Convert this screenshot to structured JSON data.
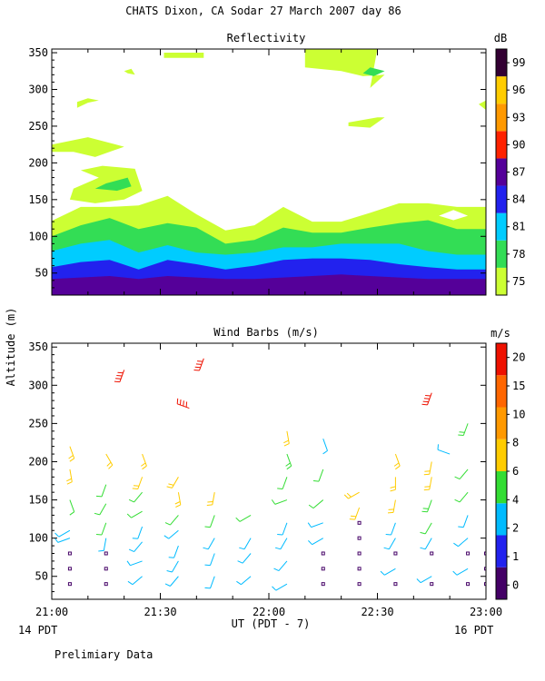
{
  "header": {
    "title": "CHATS Dixon, CA   Sodar  27 March 2007   day  86"
  },
  "colors": {
    "reflectivity_scale": [
      "#ccff33",
      "#33dd55",
      "#00ccff",
      "#2222ee",
      "#550099",
      "#ff2200",
      "#ff9900",
      "#ffcc00",
      "#330033"
    ],
    "wind_scale": [
      "#440066",
      "#2222ee",
      "#00bbff",
      "#33dd33",
      "#ffcc00",
      "#ff9900",
      "#ff6600",
      "#ee1100"
    ],
    "no_data": "#ffffff"
  },
  "footer": {
    "left_time_label": "14 PDT",
    "right_time_label": "16 PDT",
    "axis_label": "UT  (PDT - 7)",
    "note": "Prelimiary Data"
  },
  "shared": {
    "ylabel": "Altitude (m)",
    "x_ticks": [
      "21:00",
      "21:30",
      "22:00",
      "22:30",
      "23:00"
    ],
    "y_ticks": [
      "50",
      "100",
      "150",
      "200",
      "250",
      "300",
      "350"
    ]
  },
  "chart_data": [
    {
      "type": "heatmap",
      "title": "Reflectivity",
      "unit": "dB",
      "xlim": [
        "21:00",
        "23:00"
      ],
      "ylim": [
        20,
        355
      ],
      "ylabel": "Altitude (m)",
      "xlabel": "UT  (PDT - 7)",
      "colorbar_ticks": [
        "75",
        "78",
        "81",
        "84",
        "87",
        "90",
        "93",
        "96",
        "99"
      ],
      "bands": [
        {
          "level": 75,
          "top_m": [
            121,
            140,
            140,
            142,
            155,
            130,
            108,
            115,
            140,
            120,
            120,
            132,
            145,
            145,
            140,
            140
          ]
        },
        {
          "level": 78,
          "top_m": [
            100,
            115,
            125,
            110,
            118,
            112,
            90,
            95,
            112,
            105,
            105,
            112,
            118,
            122,
            110,
            110
          ]
        },
        {
          "level": 81,
          "top_m": [
            80,
            90,
            95,
            78,
            88,
            78,
            75,
            78,
            85,
            85,
            90,
            90,
            90,
            80,
            75,
            75
          ]
        },
        {
          "level": 84,
          "top_m": [
            58,
            65,
            68,
            55,
            68,
            62,
            55,
            60,
            68,
            70,
            70,
            68,
            62,
            58,
            55,
            55
          ]
        },
        {
          "level": 87,
          "top_m": [
            42,
            44,
            46,
            42,
            46,
            44,
            42,
            42,
            44,
            46,
            48,
            46,
            44,
            42,
            42,
            42
          ]
        }
      ],
      "patches": [
        {
          "level": 75,
          "points_hm": [
            [
              "21:00",
              215
            ],
            [
              "21:06",
              215
            ],
            [
              "21:12",
              208
            ],
            [
              "21:20",
              222
            ],
            [
              "21:10",
              235
            ],
            [
              "21:00",
              225
            ]
          ]
        },
        {
          "level": 75,
          "points_hm": [
            [
              "21:05",
              150
            ],
            [
              "21:12",
              145
            ],
            [
              "21:20",
              150
            ],
            [
              "21:25",
              162
            ],
            [
              "21:23",
              192
            ],
            [
              "21:14",
              196
            ],
            [
              "21:08",
              190
            ],
            [
              "21:13",
              180
            ],
            [
              "21:06",
              165
            ]
          ]
        },
        {
          "level": 78,
          "points_hm": [
            [
              "21:12",
              165
            ],
            [
              "21:18",
              162
            ],
            [
              "21:22",
              168
            ],
            [
              "21:21",
              180
            ],
            [
              "21:15",
              172
            ]
          ]
        },
        {
          "level": 75,
          "points_hm": [
            [
              "21:07",
              275
            ],
            [
              "21:10",
              282
            ],
            [
              "21:13",
              285
            ],
            [
              "21:10",
              288
            ],
            [
              "21:07",
              283
            ]
          ]
        },
        {
          "level": 75,
          "points_hm": [
            [
              "21:20",
              325
            ],
            [
              "21:22",
              328
            ],
            [
              "21:23",
              320
            ],
            [
              "21:21",
              322
            ]
          ]
        },
        {
          "level": 75,
          "points_hm": [
            [
              "21:31",
              343
            ],
            [
              "21:42",
              343
            ],
            [
              "21:42",
              350
            ],
            [
              "21:31",
              350
            ]
          ]
        },
        {
          "level": 75,
          "points_hm": [
            [
              "22:10",
              330
            ],
            [
              "22:20",
              325
            ],
            [
              "22:26",
              318
            ],
            [
              "22:32",
              320
            ],
            [
              "22:28",
              302
            ],
            [
              "22:30",
              355
            ],
            [
              "22:10",
              355
            ]
          ]
        },
        {
          "level": 78,
          "points_hm": [
            [
              "22:26",
              322
            ],
            [
              "22:29",
              318
            ],
            [
              "22:32",
              325
            ],
            [
              "22:28",
              330
            ]
          ]
        },
        {
          "level": 75,
          "points_hm": [
            [
              "22:22",
              255
            ],
            [
              "22:30",
              262
            ],
            [
              "22:32",
              262
            ],
            [
              "22:28",
              248
            ],
            [
              "22:22",
              250
            ]
          ]
        },
        {
          "level": 75,
          "points_hm": [
            [
              "22:58",
              280
            ],
            [
              "23:00",
              272
            ],
            [
              "23:00",
              285
            ]
          ]
        }
      ],
      "holes": [
        {
          "points_hm": [
            [
              "22:47",
              128
            ],
            [
              "22:51",
              122
            ],
            [
              "22:55",
              128
            ],
            [
              "22:51",
              136
            ]
          ]
        }
      ]
    },
    {
      "type": "scatter",
      "title": "Wind Barbs (m/s)",
      "unit": "m/s",
      "xlim": [
        "21:00",
        "23:00"
      ],
      "ylim": [
        20,
        355
      ],
      "ylabel": "Altitude (m)",
      "xlabel": "UT  (PDT - 7)",
      "colorbar_ticks": [
        "0",
        "1",
        "2",
        "4",
        "6",
        "8",
        "10",
        "15",
        "20"
      ],
      "observations": [
        [
          "21:05",
          220,
          6,
          160
        ],
        [
          "21:05",
          190,
          6,
          170
        ],
        [
          "21:05",
          150,
          4,
          160
        ],
        [
          "21:05",
          110,
          2,
          240
        ],
        [
          "21:05",
          100,
          3,
          250
        ],
        [
          "21:15",
          210,
          6,
          150
        ],
        [
          "21:15",
          170,
          4,
          200
        ],
        [
          "21:15",
          145,
          4,
          210
        ],
        [
          "21:15",
          120,
          4,
          200
        ],
        [
          "21:15",
          100,
          3,
          190
        ],
        [
          "21:25",
          210,
          7,
          160
        ],
        [
          "21:25",
          180,
          6,
          200
        ],
        [
          "21:25",
          160,
          4,
          220
        ],
        [
          "21:25",
          135,
          4,
          240
        ],
        [
          "21:25",
          115,
          3,
          200
        ],
        [
          "21:25",
          95,
          3,
          220
        ],
        [
          "21:25",
          70,
          2,
          250
        ],
        [
          "21:25",
          50,
          3,
          230
        ],
        [
          "21:35",
          180,
          6,
          210
        ],
        [
          "21:35",
          160,
          7,
          170
        ],
        [
          "21:35",
          130,
          4,
          220
        ],
        [
          "21:35",
          110,
          3,
          230
        ],
        [
          "21:35",
          90,
          3,
          200
        ],
        [
          "21:35",
          70,
          3,
          210
        ],
        [
          "21:35",
          50,
          3,
          220
        ],
        [
          "21:45",
          160,
          6,
          190
        ],
        [
          "21:45",
          130,
          4,
          200
        ],
        [
          "21:45",
          100,
          3,
          210
        ],
        [
          "21:45",
          80,
          2,
          200
        ],
        [
          "21:45",
          50,
          2,
          200
        ],
        [
          "21:55",
          130,
          4,
          240
        ],
        [
          "21:55",
          100,
          2,
          210
        ],
        [
          "21:55",
          80,
          2,
          220
        ],
        [
          "21:55",
          50,
          2,
          230
        ],
        [
          "22:05",
          240,
          7,
          170
        ],
        [
          "22:05",
          210,
          5,
          160
        ],
        [
          "22:05",
          180,
          4,
          200
        ],
        [
          "22:05",
          150,
          4,
          250
        ],
        [
          "22:05",
          120,
          3,
          200
        ],
        [
          "22:05",
          100,
          2,
          210
        ],
        [
          "22:05",
          70,
          2,
          220
        ],
        [
          "22:05",
          40,
          3,
          240
        ],
        [
          "22:15",
          230,
          2,
          160
        ],
        [
          "22:15",
          190,
          4,
          200
        ],
        [
          "22:15",
          150,
          4,
          230
        ],
        [
          "22:15",
          120,
          3,
          250
        ],
        [
          "22:15",
          100,
          3,
          240
        ],
        [
          "22:25",
          160,
          6,
          240
        ],
        [
          "22:25",
          140,
          7,
          200
        ],
        [
          "22:35",
          210,
          7,
          160
        ],
        [
          "22:35",
          180,
          6,
          180
        ],
        [
          "22:35",
          150,
          6,
          190
        ],
        [
          "22:35",
          120,
          3,
          200
        ],
        [
          "22:35",
          100,
          3,
          210
        ],
        [
          "22:35",
          60,
          3,
          240
        ],
        [
          "22:45",
          200,
          6,
          190
        ],
        [
          "22:45",
          180,
          6,
          190
        ],
        [
          "22:45",
          150,
          5,
          200
        ],
        [
          "22:45",
          120,
          4,
          210
        ],
        [
          "22:45",
          100,
          3,
          210
        ],
        [
          "22:45",
          50,
          3,
          240
        ],
        [
          "22:55",
          250,
          5,
          200
        ],
        [
          "22:55",
          190,
          4,
          220
        ],
        [
          "22:55",
          160,
          4,
          220
        ],
        [
          "22:55",
          130,
          3,
          200
        ],
        [
          "22:55",
          100,
          3,
          230
        ],
        [
          "22:55",
          60,
          3,
          240
        ]
      ],
      "calm_markers_hm": [
        [
          "21:05",
          80
        ],
        [
          "21:05",
          60
        ],
        [
          "21:05",
          40
        ],
        [
          "21:15",
          80
        ],
        [
          "21:15",
          60
        ],
        [
          "21:15",
          40
        ],
        [
          "22:15",
          80
        ],
        [
          "22:15",
          60
        ],
        [
          "22:15",
          40
        ],
        [
          "22:25",
          120
        ],
        [
          "22:25",
          100
        ],
        [
          "22:25",
          80
        ],
        [
          "22:25",
          60
        ],
        [
          "22:25",
          40
        ],
        [
          "22:35",
          80
        ],
        [
          "22:35",
          40
        ],
        [
          "22:45",
          80
        ],
        [
          "22:45",
          40
        ],
        [
          "22:55",
          80
        ],
        [
          "22:55",
          40
        ],
        [
          "23:00",
          80
        ],
        [
          "23:00",
          60
        ],
        [
          "23:00",
          40
        ]
      ],
      "flagged_barbs": [
        [
          "21:38",
          270,
          20,
          290
        ],
        [
          "21:20",
          320,
          15,
          200
        ],
        [
          "21:42",
          335,
          15,
          200
        ],
        [
          "22:45",
          290,
          15,
          200
        ],
        [
          "22:50",
          210,
          2,
          290
        ]
      ]
    }
  ]
}
